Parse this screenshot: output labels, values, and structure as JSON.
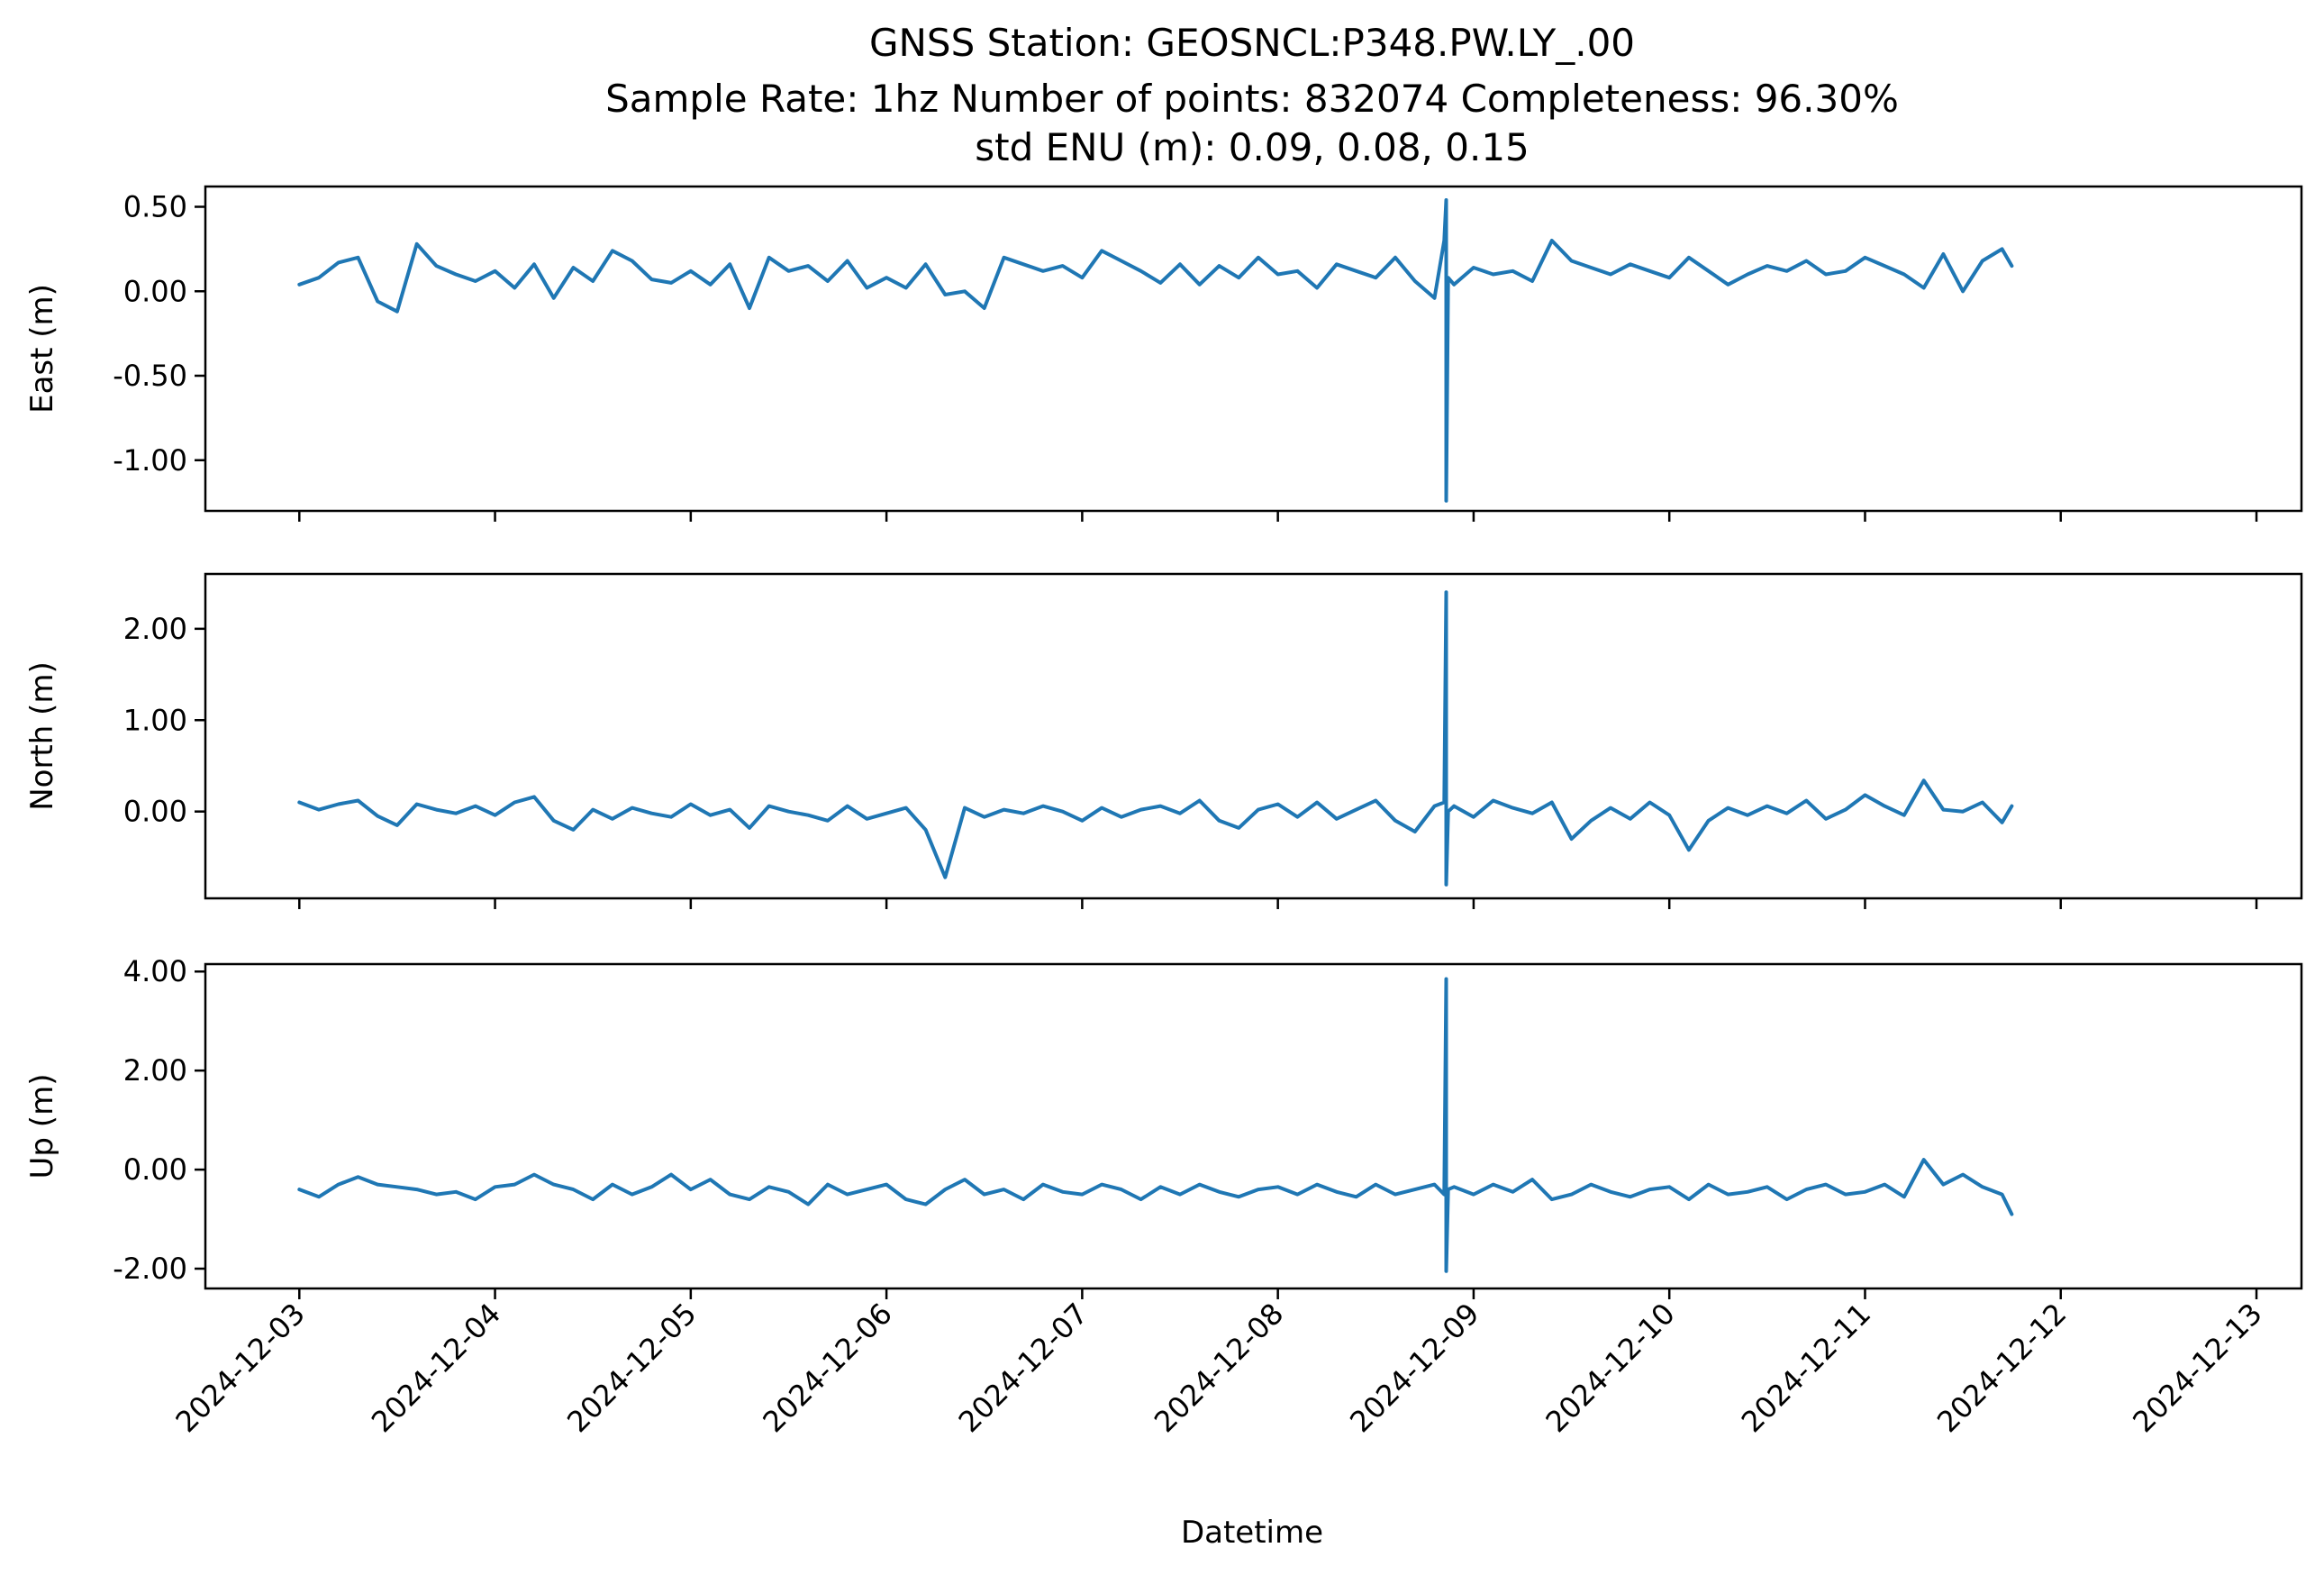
{
  "title_lines": [
    "GNSS Station: GEOSNCL:P348.PW.LY_.00",
    "Sample Rate: 1hz   Number of points: 832074    Completeness:  96.30%",
    "std ENU (m):  0.09, 0.08, 0.15"
  ],
  "chart_data": [
    {
      "type": "line",
      "ylabel": "East (m)",
      "xlabel": "",
      "ylim": [
        -1.3,
        0.62
      ],
      "yticks": [
        0.5,
        0.0,
        -0.5,
        -1.0
      ],
      "ytick_labels": [
        "0.50",
        "0.00",
        "-0.50",
        "-1.00"
      ],
      "color": "#1f77b4",
      "x": [
        0.0,
        0.1,
        0.2,
        0.3,
        0.4,
        0.5,
        0.6,
        0.7,
        0.8,
        0.9,
        1.0,
        1.1,
        1.2,
        1.3,
        1.4,
        1.5,
        1.6,
        1.7,
        1.8,
        1.9,
        2.0,
        2.1,
        2.2,
        2.3,
        2.4,
        2.5,
        2.6,
        2.7,
        2.8,
        2.9,
        3.0,
        3.1,
        3.2,
        3.3,
        3.4,
        3.5,
        3.6,
        3.7,
        3.8,
        3.9,
        4.0,
        4.1,
        4.2,
        4.3,
        4.4,
        4.5,
        4.6,
        4.7,
        4.8,
        4.9,
        5.0,
        5.1,
        5.2,
        5.3,
        5.4,
        5.5,
        5.6,
        5.7,
        5.8,
        5.85,
        5.86,
        5.86,
        5.87,
        5.9,
        6.0,
        6.1,
        6.2,
        6.3,
        6.4,
        6.5,
        6.6,
        6.7,
        6.8,
        6.9,
        7.0,
        7.1,
        7.2,
        7.3,
        7.4,
        7.5,
        7.6,
        7.7,
        7.8,
        7.9,
        8.0,
        8.1,
        8.2,
        8.3,
        8.4,
        8.5,
        8.6,
        8.7,
        8.75
      ],
      "y": [
        0.04,
        0.08,
        0.17,
        0.2,
        -0.06,
        -0.12,
        0.28,
        0.15,
        0.1,
        0.06,
        0.12,
        0.02,
        0.16,
        -0.04,
        0.14,
        0.06,
        0.24,
        0.18,
        0.07,
        0.05,
        0.12,
        0.04,
        0.16,
        -0.1,
        0.2,
        0.12,
        0.15,
        0.06,
        0.18,
        0.02,
        0.08,
        0.02,
        0.16,
        -0.02,
        0.0,
        -0.1,
        0.2,
        0.16,
        0.12,
        0.15,
        0.08,
        0.24,
        0.18,
        0.12,
        0.05,
        0.16,
        0.04,
        0.15,
        0.08,
        0.2,
        0.1,
        0.12,
        0.02,
        0.16,
        0.12,
        0.08,
        0.2,
        0.06,
        -0.04,
        0.3,
        0.54,
        -1.24,
        0.08,
        0.04,
        0.14,
        0.1,
        0.12,
        0.06,
        0.3,
        0.18,
        0.14,
        0.1,
        0.16,
        0.12,
        0.08,
        0.2,
        0.12,
        0.04,
        0.1,
        0.15,
        0.12,
        0.18,
        0.1,
        0.12,
        0.2,
        0.15,
        0.1,
        0.02,
        0.22,
        0.0,
        0.18,
        0.25,
        0.15
      ]
    },
    {
      "type": "line",
      "ylabel": "North (m)",
      "xlabel": "",
      "ylim": [
        -0.95,
        2.6
      ],
      "yticks": [
        2.0,
        1.0,
        0.0
      ],
      "ytick_labels": [
        "2.00",
        "1.00",
        "0.00"
      ],
      "color": "#1f77b4",
      "x": [
        0.0,
        0.1,
        0.2,
        0.3,
        0.4,
        0.5,
        0.6,
        0.7,
        0.8,
        0.9,
        1.0,
        1.1,
        1.2,
        1.3,
        1.4,
        1.5,
        1.6,
        1.7,
        1.8,
        1.9,
        2.0,
        2.1,
        2.2,
        2.3,
        2.4,
        2.5,
        2.6,
        2.7,
        2.8,
        2.9,
        3.0,
        3.1,
        3.2,
        3.3,
        3.4,
        3.5,
        3.6,
        3.7,
        3.8,
        3.9,
        4.0,
        4.1,
        4.2,
        4.3,
        4.4,
        4.5,
        4.6,
        4.7,
        4.8,
        4.9,
        5.0,
        5.1,
        5.2,
        5.3,
        5.4,
        5.5,
        5.6,
        5.7,
        5.8,
        5.85,
        5.86,
        5.86,
        5.87,
        5.9,
        6.0,
        6.1,
        6.2,
        6.3,
        6.4,
        6.5,
        6.6,
        6.7,
        6.8,
        6.9,
        7.0,
        7.1,
        7.2,
        7.3,
        7.4,
        7.5,
        7.6,
        7.7,
        7.8,
        7.9,
        8.0,
        8.1,
        8.2,
        8.3,
        8.4,
        8.5,
        8.6,
        8.7,
        8.75
      ],
      "y": [
        0.1,
        0.02,
        0.08,
        0.12,
        -0.05,
        -0.15,
        0.08,
        0.02,
        -0.02,
        0.06,
        -0.04,
        0.1,
        0.16,
        -0.1,
        -0.2,
        0.02,
        -0.08,
        0.04,
        -0.02,
        -0.06,
        0.08,
        -0.04,
        0.02,
        -0.18,
        0.06,
        0.0,
        -0.04,
        -0.1,
        0.06,
        -0.08,
        -0.02,
        0.04,
        -0.2,
        -0.72,
        0.04,
        -0.06,
        0.02,
        -0.02,
        0.06,
        0.0,
        -0.1,
        0.04,
        -0.06,
        0.02,
        0.06,
        -0.02,
        0.12,
        -0.1,
        -0.18,
        0.02,
        0.08,
        -0.06,
        0.1,
        -0.08,
        0.02,
        0.12,
        -0.1,
        -0.22,
        0.06,
        0.1,
        2.4,
        -0.8,
        0.0,
        0.06,
        -0.06,
        0.12,
        0.04,
        -0.02,
        0.1,
        -0.3,
        -0.1,
        0.04,
        -0.08,
        0.1,
        -0.04,
        -0.42,
        -0.1,
        0.04,
        -0.04,
        0.06,
        -0.02,
        0.12,
        -0.08,
        0.02,
        0.18,
        0.06,
        -0.04,
        0.34,
        0.02,
        0.0,
        0.1,
        -0.12,
        0.06
      ]
    },
    {
      "type": "line",
      "ylabel": "Up (m)",
      "xlabel": "Datetime",
      "ylim": [
        -2.4,
        4.15
      ],
      "yticks": [
        4.0,
        2.0,
        0.0,
        -2.0
      ],
      "ytick_labels": [
        "4.00",
        "2.00",
        "0.00",
        "-2.00"
      ],
      "color": "#1f77b4",
      "x": [
        0.0,
        0.1,
        0.2,
        0.3,
        0.4,
        0.5,
        0.6,
        0.7,
        0.8,
        0.9,
        1.0,
        1.1,
        1.2,
        1.3,
        1.4,
        1.5,
        1.6,
        1.7,
        1.8,
        1.9,
        2.0,
        2.1,
        2.2,
        2.3,
        2.4,
        2.5,
        2.6,
        2.7,
        2.8,
        2.9,
        3.0,
        3.1,
        3.2,
        3.3,
        3.4,
        3.5,
        3.6,
        3.7,
        3.8,
        3.9,
        4.0,
        4.1,
        4.2,
        4.3,
        4.4,
        4.5,
        4.6,
        4.7,
        4.8,
        4.9,
        5.0,
        5.1,
        5.2,
        5.3,
        5.4,
        5.5,
        5.6,
        5.7,
        5.8,
        5.85,
        5.86,
        5.86,
        5.87,
        5.9,
        6.0,
        6.1,
        6.2,
        6.3,
        6.4,
        6.5,
        6.6,
        6.7,
        6.8,
        6.9,
        7.0,
        7.1,
        7.2,
        7.3,
        7.4,
        7.5,
        7.6,
        7.7,
        7.8,
        7.9,
        8.0,
        8.1,
        8.2,
        8.3,
        8.4,
        8.5,
        8.6,
        8.7,
        8.75
      ],
      "y": [
        -0.4,
        -0.55,
        -0.3,
        -0.15,
        -0.3,
        -0.35,
        -0.4,
        -0.5,
        -0.45,
        -0.6,
        -0.35,
        -0.3,
        -0.1,
        -0.3,
        -0.4,
        -0.6,
        -0.3,
        -0.5,
        -0.35,
        -0.1,
        -0.4,
        -0.2,
        -0.5,
        -0.6,
        -0.35,
        -0.45,
        -0.7,
        -0.3,
        -0.5,
        -0.4,
        -0.3,
        -0.6,
        -0.7,
        -0.4,
        -0.2,
        -0.5,
        -0.4,
        -0.6,
        -0.3,
        -0.45,
        -0.5,
        -0.3,
        -0.4,
        -0.6,
        -0.35,
        -0.5,
        -0.3,
        -0.45,
        -0.55,
        -0.4,
        -0.35,
        -0.5,
        -0.3,
        -0.45,
        -0.55,
        -0.3,
        -0.5,
        -0.4,
        -0.3,
        -0.5,
        3.85,
        -2.05,
        -0.4,
        -0.35,
        -0.5,
        -0.3,
        -0.45,
        -0.2,
        -0.6,
        -0.5,
        -0.3,
        -0.45,
        -0.55,
        -0.4,
        -0.35,
        -0.6,
        -0.3,
        -0.5,
        -0.45,
        -0.35,
        -0.6,
        -0.4,
        -0.3,
        -0.5,
        -0.45,
        -0.3,
        -0.55,
        0.2,
        -0.3,
        -0.1,
        -0.35,
        -0.5,
        -0.9
      ]
    }
  ],
  "x_axis": {
    "tick_labels": [
      "2024-12-03",
      "2024-12-04",
      "2024-12-05",
      "2024-12-06",
      "2024-12-07",
      "2024-12-08",
      "2024-12-09",
      "2024-12-10",
      "2024-12-11",
      "2024-12-12",
      "2024-12-13"
    ],
    "xlim_days": [
      -0.48,
      10.23
    ]
  }
}
